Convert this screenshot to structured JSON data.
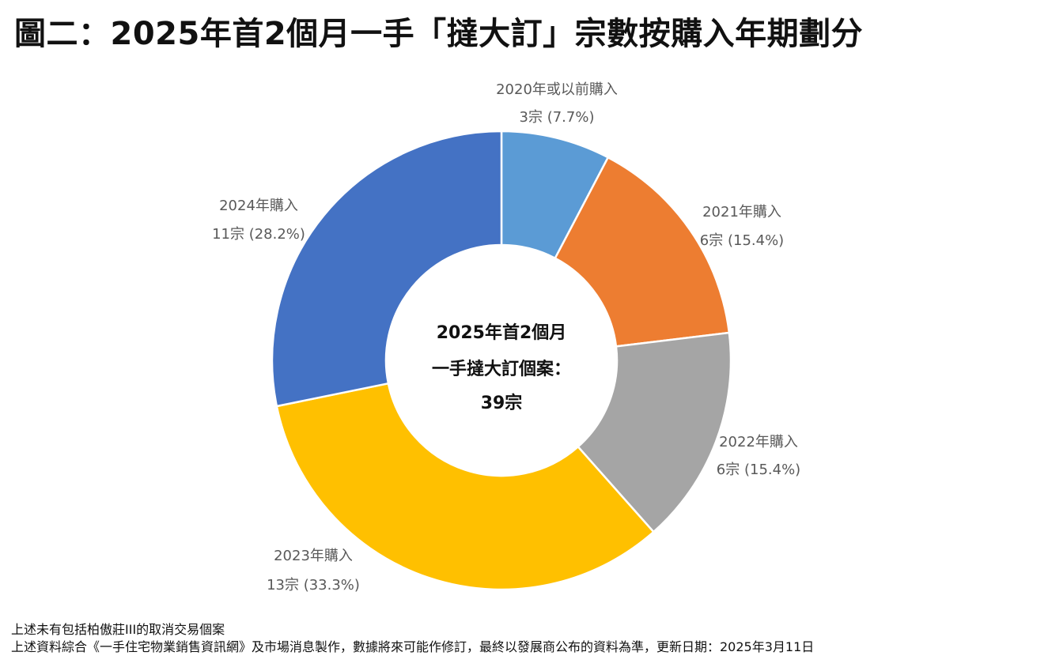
{
  "title": "圖二：2025年首2個月一手「撻大訂」宗數按購入年期劃分",
  "chart_data": {
    "type": "pie",
    "donut": true,
    "center_text": [
      "2025年首2個月",
      "一手撻大訂個案：",
      "39宗"
    ],
    "total": 39,
    "slices": [
      {
        "label": "2020年或以前購入",
        "count": 3,
        "value_text": "3宗 (7.7%)",
        "percent": 7.7,
        "color": "#5B9BD5"
      },
      {
        "label": "2021年購入",
        "count": 6,
        "value_text": "6宗 (15.4%)",
        "percent": 15.4,
        "color": "#ED7D31"
      },
      {
        "label": "2022年購入",
        "count": 6,
        "value_text": "6宗 (15.4%)",
        "percent": 15.4,
        "color": "#A5A5A5"
      },
      {
        "label": "2023年購入",
        "count": 13,
        "value_text": "13宗 (33.3%)",
        "percent": 33.3,
        "color": "#FFC000"
      },
      {
        "label": "2024年購入",
        "count": 11,
        "value_text": "11宗 (28.2%)",
        "percent": 28.2,
        "color": "#4472C4"
      }
    ]
  },
  "footnotes": [
    "上述未有包括柏傲莊III的取消交易個案",
    "上述資料綜合《一手住宅物業銷售資訊網》及市場消息製作，數據將來可能作修訂，最終以發展商公布的資料為準，更新日期：2025年3月11日"
  ]
}
